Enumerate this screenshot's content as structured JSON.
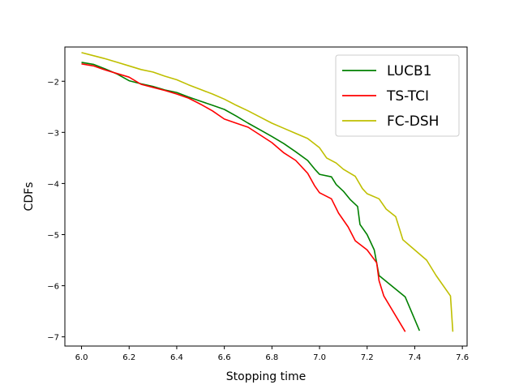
{
  "chart_data": {
    "type": "line",
    "xlabel": "Stopping time",
    "ylabel": "CDFs",
    "xlim": [
      5.93,
      7.62
    ],
    "ylim": [
      -7.18,
      -1.33
    ],
    "xticks": [
      6.0,
      6.2,
      6.4,
      6.6,
      6.8,
      7.0,
      7.2,
      7.4,
      7.6
    ],
    "xtick_labels": [
      "6.0",
      "6.2",
      "6.4",
      "6.6",
      "6.8",
      "7.0",
      "7.2",
      "7.4",
      "7.6"
    ],
    "yticks": [
      -7,
      -6,
      -5,
      -4,
      -3,
      -2
    ],
    "ytick_labels": [
      "−7",
      "−6",
      "−5",
      "−4",
      "−3",
      "−2"
    ],
    "grid": false,
    "legend_position": "top-right",
    "series": [
      {
        "name": "LUCB1",
        "color": "#008000",
        "points": [
          [
            6.0,
            -1.63
          ],
          [
            6.05,
            -1.67
          ],
          [
            6.1,
            -1.76
          ],
          [
            6.15,
            -1.86
          ],
          [
            6.2,
            -1.99
          ],
          [
            6.25,
            -2.05
          ],
          [
            6.3,
            -2.1
          ],
          [
            6.35,
            -2.17
          ],
          [
            6.4,
            -2.22
          ],
          [
            6.45,
            -2.31
          ],
          [
            6.5,
            -2.39
          ],
          [
            6.55,
            -2.47
          ],
          [
            6.6,
            -2.55
          ],
          [
            6.65,
            -2.68
          ],
          [
            6.7,
            -2.82
          ],
          [
            6.75,
            -2.95
          ],
          [
            6.8,
            -3.08
          ],
          [
            6.85,
            -3.22
          ],
          [
            6.9,
            -3.38
          ],
          [
            6.95,
            -3.55
          ],
          [
            6.98,
            -3.72
          ],
          [
            7.0,
            -3.82
          ],
          [
            7.05,
            -3.87
          ],
          [
            7.07,
            -4.02
          ],
          [
            7.1,
            -4.15
          ],
          [
            7.13,
            -4.32
          ],
          [
            7.16,
            -4.45
          ],
          [
            7.17,
            -4.8
          ],
          [
            7.2,
            -5.0
          ],
          [
            7.23,
            -5.3
          ],
          [
            7.25,
            -5.8
          ],
          [
            7.36,
            -6.22
          ],
          [
            7.42,
            -6.88
          ]
        ]
      },
      {
        "name": "TS-TCI",
        "color": "#ff0000",
        "points": [
          [
            6.0,
            -1.66
          ],
          [
            6.05,
            -1.7
          ],
          [
            6.1,
            -1.78
          ],
          [
            6.15,
            -1.85
          ],
          [
            6.2,
            -1.92
          ],
          [
            6.25,
            -2.06
          ],
          [
            6.3,
            -2.12
          ],
          [
            6.35,
            -2.18
          ],
          [
            6.4,
            -2.25
          ],
          [
            6.45,
            -2.33
          ],
          [
            6.5,
            -2.45
          ],
          [
            6.55,
            -2.58
          ],
          [
            6.6,
            -2.74
          ],
          [
            6.65,
            -2.82
          ],
          [
            6.7,
            -2.9
          ],
          [
            6.75,
            -3.05
          ],
          [
            6.8,
            -3.2
          ],
          [
            6.85,
            -3.4
          ],
          [
            6.9,
            -3.55
          ],
          [
            6.95,
            -3.8
          ],
          [
            6.98,
            -4.05
          ],
          [
            7.0,
            -4.18
          ],
          [
            7.05,
            -4.3
          ],
          [
            7.08,
            -4.58
          ],
          [
            7.12,
            -4.85
          ],
          [
            7.15,
            -5.12
          ],
          [
            7.2,
            -5.3
          ],
          [
            7.24,
            -5.55
          ],
          [
            7.25,
            -5.9
          ],
          [
            7.27,
            -6.2
          ],
          [
            7.36,
            -6.9
          ]
        ]
      },
      {
        "name": "FC-DSH",
        "color": "#bfbf00",
        "points": [
          [
            6.0,
            -1.44
          ],
          [
            6.05,
            -1.5
          ],
          [
            6.1,
            -1.56
          ],
          [
            6.15,
            -1.63
          ],
          [
            6.2,
            -1.7
          ],
          [
            6.25,
            -1.77
          ],
          [
            6.3,
            -1.82
          ],
          [
            6.35,
            -1.9
          ],
          [
            6.4,
            -1.97
          ],
          [
            6.45,
            -2.07
          ],
          [
            6.5,
            -2.16
          ],
          [
            6.55,
            -2.25
          ],
          [
            6.6,
            -2.35
          ],
          [
            6.65,
            -2.47
          ],
          [
            6.7,
            -2.58
          ],
          [
            6.75,
            -2.7
          ],
          [
            6.8,
            -2.82
          ],
          [
            6.85,
            -2.92
          ],
          [
            6.9,
            -3.02
          ],
          [
            6.95,
            -3.12
          ],
          [
            7.0,
            -3.3
          ],
          [
            7.03,
            -3.5
          ],
          [
            7.07,
            -3.6
          ],
          [
            7.1,
            -3.72
          ],
          [
            7.15,
            -3.86
          ],
          [
            7.18,
            -4.1
          ],
          [
            7.2,
            -4.2
          ],
          [
            7.25,
            -4.3
          ],
          [
            7.28,
            -4.5
          ],
          [
            7.32,
            -4.65
          ],
          [
            7.35,
            -5.1
          ],
          [
            7.4,
            -5.3
          ],
          [
            7.45,
            -5.5
          ],
          [
            7.49,
            -5.8
          ],
          [
            7.55,
            -6.2
          ],
          [
            7.56,
            -6.9
          ]
        ]
      }
    ]
  }
}
